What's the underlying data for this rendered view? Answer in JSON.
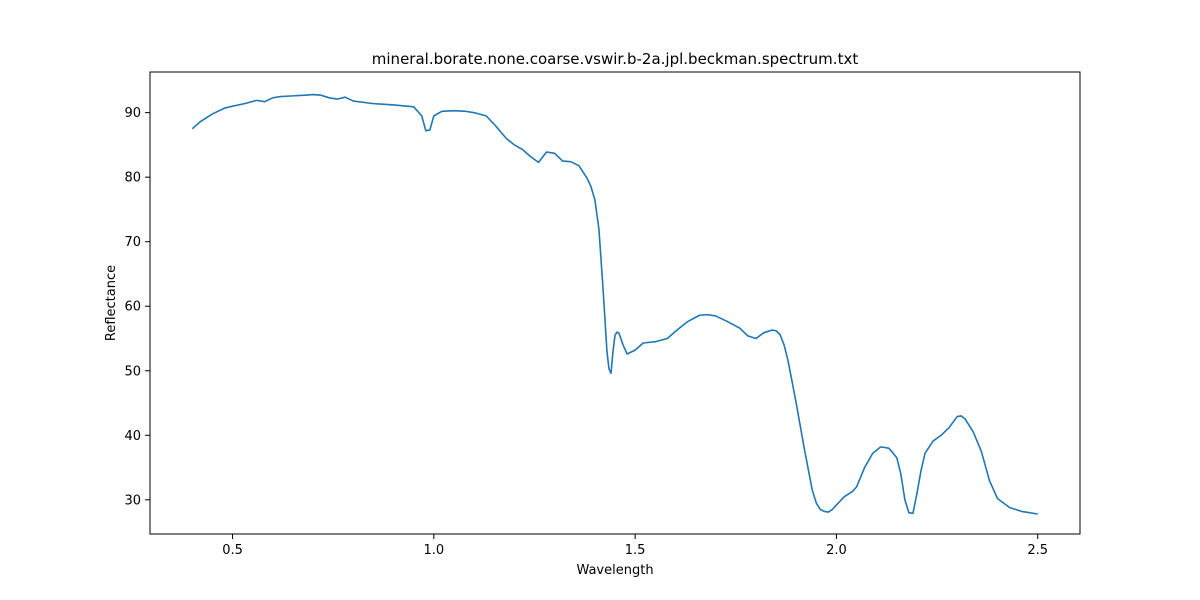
{
  "chart_data": {
    "type": "line",
    "title": "mineral.borate.none.coarse.vswir.b-2a.jpl.beckman.spectrum.txt",
    "xlabel": "Wavelength",
    "ylabel": "Reflectance",
    "xlim": [
      0.295,
      2.605
    ],
    "ylim": [
      24.7,
      96.3
    ],
    "xticks": [
      0.5,
      1.0,
      1.5,
      2.0,
      2.5
    ],
    "xtick_labels": [
      "0.5",
      "1.0",
      "1.5",
      "2.0",
      "2.5"
    ],
    "yticks": [
      30,
      40,
      50,
      60,
      70,
      80,
      90
    ],
    "ytick_labels": [
      "30",
      "40",
      "50",
      "60",
      "70",
      "80",
      "90"
    ],
    "grid": false,
    "legend": "none",
    "series": [
      {
        "color": "#1f77b4",
        "x": [
          0.4,
          0.42,
          0.45,
          0.48,
          0.5,
          0.53,
          0.56,
          0.58,
          0.6,
          0.62,
          0.65,
          0.68,
          0.7,
          0.72,
          0.74,
          0.76,
          0.78,
          0.8,
          0.85,
          0.9,
          0.95,
          0.97,
          0.98,
          0.99,
          1.0,
          1.02,
          1.05,
          1.08,
          1.1,
          1.13,
          1.15,
          1.18,
          1.2,
          1.22,
          1.24,
          1.26,
          1.27,
          1.28,
          1.3,
          1.32,
          1.34,
          1.36,
          1.38,
          1.39,
          1.4,
          1.41,
          1.42,
          1.43,
          1.435,
          1.44,
          1.445,
          1.45,
          1.455,
          1.46,
          1.47,
          1.48,
          1.5,
          1.52,
          1.55,
          1.58,
          1.6,
          1.63,
          1.66,
          1.68,
          1.7,
          1.73,
          1.76,
          1.78,
          1.8,
          1.82,
          1.84,
          1.85,
          1.86,
          1.87,
          1.88,
          1.9,
          1.92,
          1.94,
          1.95,
          1.96,
          1.97,
          1.98,
          1.99,
          2.0,
          2.02,
          2.04,
          2.05,
          2.07,
          2.09,
          2.11,
          2.13,
          2.14,
          2.15,
          2.16,
          2.17,
          2.18,
          2.19,
          2.2,
          2.21,
          2.22,
          2.24,
          2.26,
          2.28,
          2.3,
          2.31,
          2.32,
          2.34,
          2.36,
          2.38,
          2.4,
          2.43,
          2.46,
          2.5
        ],
        "y": [
          87.5,
          88.6,
          89.8,
          90.7,
          91.0,
          91.4,
          91.9,
          91.7,
          92.3,
          92.5,
          92.6,
          92.7,
          92.8,
          92.7,
          92.3,
          92.1,
          92.4,
          91.8,
          91.4,
          91.2,
          90.9,
          89.5,
          87.2,
          87.3,
          89.5,
          90.2,
          90.3,
          90.2,
          90.0,
          89.5,
          88.2,
          86.0,
          85.0,
          84.3,
          83.2,
          82.3,
          83.1,
          83.9,
          83.7,
          82.5,
          82.4,
          81.8,
          79.9,
          78.6,
          76.5,
          72.0,
          63.0,
          53.0,
          50.3,
          49.6,
          53.0,
          55.5,
          56.0,
          55.8,
          54.0,
          52.6,
          53.2,
          54.3,
          54.5,
          55.0,
          56.1,
          57.6,
          58.6,
          58.7,
          58.5,
          57.6,
          56.6,
          55.4,
          55.0,
          55.9,
          56.3,
          56.2,
          55.6,
          54.0,
          51.5,
          45.0,
          38.0,
          31.5,
          29.5,
          28.5,
          28.2,
          28.1,
          28.5,
          29.2,
          30.5,
          31.3,
          32.0,
          35.0,
          37.2,
          38.2,
          38.0,
          37.3,
          36.5,
          34.0,
          30.0,
          28.0,
          27.9,
          31.0,
          34.5,
          37.2,
          39.1,
          40.0,
          41.2,
          42.9,
          43.0,
          42.5,
          40.5,
          37.5,
          33.0,
          30.2,
          28.8,
          28.2,
          27.8
        ]
      }
    ]
  }
}
